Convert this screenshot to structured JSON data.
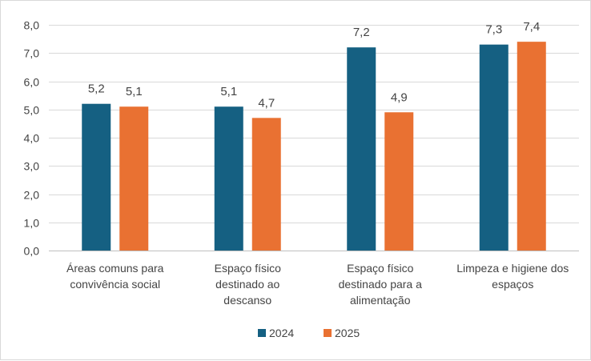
{
  "chart_data": {
    "type": "bar",
    "title": "",
    "xlabel": "",
    "ylabel": "",
    "ylim": [
      0,
      8
    ],
    "yticks": [
      "0,0",
      "1,0",
      "2,0",
      "3,0",
      "4,0",
      "5,0",
      "6,0",
      "7,0",
      "8,0"
    ],
    "ytick_values": [
      0,
      1,
      2,
      3,
      4,
      5,
      6,
      7,
      8
    ],
    "grid": "horizontal",
    "legend": "bottom",
    "categories": [
      [
        "Áreas comuns para",
        "convivência social"
      ],
      [
        "Espaço físico",
        "destinado ao",
        "descanso"
      ],
      [
        "Espaço físico",
        "destinado para a",
        "alimentação"
      ],
      [
        "Limpeza e higiene dos",
        "espaços"
      ]
    ],
    "series": [
      {
        "name": "2024",
        "color": "#156082",
        "values": [
          5.2,
          5.1,
          7.2,
          7.3
        ],
        "labels": [
          "5,2",
          "5,1",
          "7,2",
          "7,3"
        ]
      },
      {
        "name": "2025",
        "color": "#E97132",
        "values": [
          5.1,
          4.7,
          4.9,
          7.4
        ],
        "labels": [
          "5,1",
          "4,7",
          "4,9",
          "7,4"
        ]
      }
    ]
  }
}
